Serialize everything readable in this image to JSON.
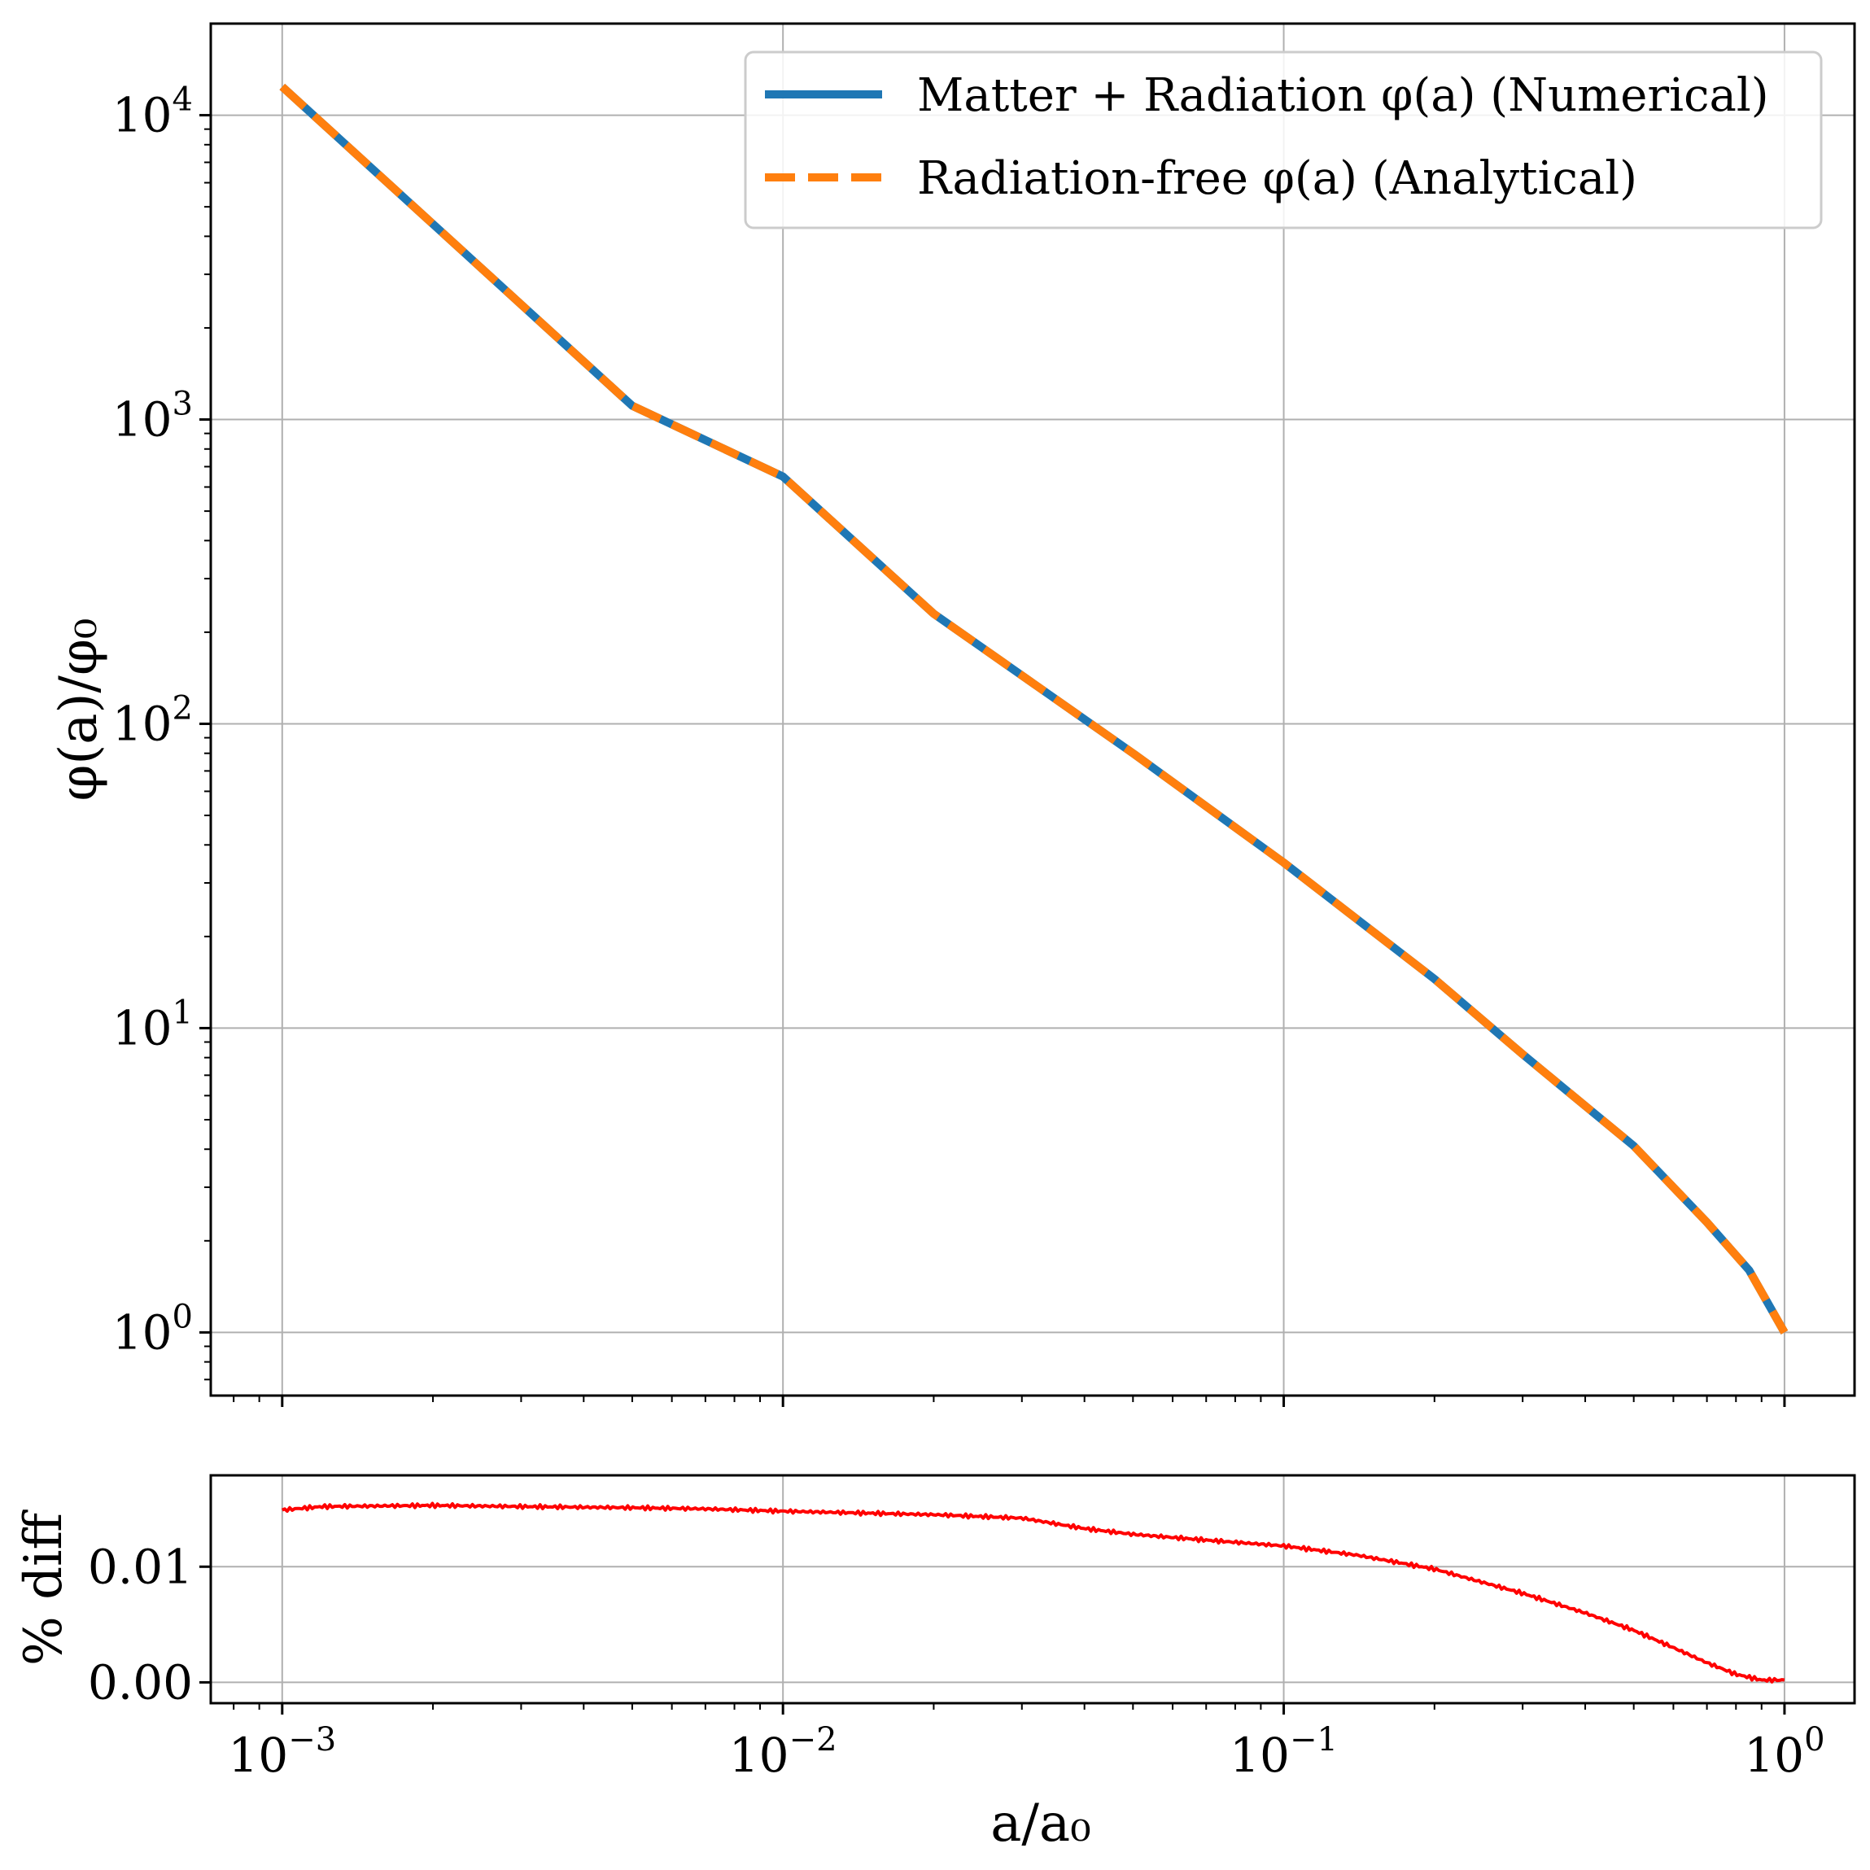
{
  "chart_data": [
    {
      "type": "line",
      "panel": "main",
      "xscale": "log",
      "yscale": "log",
      "xlim": [
        0.00072,
        1.38
      ],
      "ylim": [
        0.62,
        20000
      ],
      "xlabel": "",
      "ylabel": "φ(a)/φ₀",
      "grid": true,
      "legend_position": "top-right",
      "x_ticks": [
        {
          "value": 0.001,
          "base": "10",
          "exp": "−3"
        },
        {
          "value": 0.01,
          "base": "10",
          "exp": "−2"
        },
        {
          "value": 0.1,
          "base": "10",
          "exp": "−1"
        },
        {
          "value": 1,
          "base": "10",
          "exp": "0"
        }
      ],
      "y_ticks": [
        {
          "value": 1,
          "base": "10",
          "exp": "0"
        },
        {
          "value": 10,
          "base": "10",
          "exp": "1"
        },
        {
          "value": 100,
          "base": "10",
          "exp": "2"
        },
        {
          "value": 1000,
          "base": "10",
          "exp": "3"
        },
        {
          "value": 10000,
          "base": "10",
          "exp": "4"
        }
      ],
      "series": [
        {
          "name": "Matter + Radiation φ(a) (Numerical)",
          "color": "#1f77b4",
          "style": "solid",
          "x": [
            0.001,
            0.002,
            0.005,
            0.01,
            0.02,
            0.05,
            0.1,
            0.2,
            0.3,
            0.5,
            0.7,
            0.85,
            1.0
          ],
          "y": [
            12400,
            4390,
            1110,
            649,
            230,
            80,
            35,
            14.5,
            8.2,
            4.1,
            2.3,
            1.6,
            1.0
          ]
        },
        {
          "name": "Radiation-free φ(a) (Analytical)",
          "color": "#ff7f0e",
          "style": "dashed",
          "x": [
            0.001,
            0.002,
            0.005,
            0.01,
            0.02,
            0.05,
            0.1,
            0.2,
            0.3,
            0.5,
            0.7,
            0.85,
            1.0
          ],
          "y": [
            12400,
            4390,
            1110,
            649,
            230,
            80,
            35,
            14.5,
            8.2,
            4.1,
            2.3,
            1.6,
            1.0
          ]
        }
      ]
    },
    {
      "type": "line",
      "panel": "residual",
      "xscale": "log",
      "yscale": "linear",
      "xlim": [
        0.00072,
        1.38
      ],
      "ylim": [
        -0.0018,
        0.0179
      ],
      "xlabel": "a/a₀",
      "ylabel": "% diff",
      "grid": true,
      "x_ticks": [
        {
          "value": 0.001,
          "base": "10",
          "exp": "−3"
        },
        {
          "value": 0.01,
          "base": "10",
          "exp": "−2"
        },
        {
          "value": 0.1,
          "base": "10",
          "exp": "−1"
        },
        {
          "value": 1,
          "base": "10",
          "exp": "0"
        }
      ],
      "y_ticks": [
        {
          "value": 0.0,
          "label": "0.00"
        },
        {
          "value": 0.01,
          "label": "0.01"
        }
      ],
      "series": [
        {
          "name": "% diff",
          "color": "#ff0000",
          "style": "solid",
          "x": [
            0.001,
            0.0012,
            0.002,
            0.003,
            0.005,
            0.007,
            0.01,
            0.02,
            0.03,
            0.04,
            0.05,
            0.07,
            0.1,
            0.14,
            0.2,
            0.22,
            0.3,
            0.4,
            0.5,
            0.6,
            0.7,
            0.8,
            0.9,
            1.0
          ],
          "y": [
            0.0149,
            0.0152,
            0.0153,
            0.0152,
            0.0151,
            0.015,
            0.0148,
            0.0145,
            0.0142,
            0.0133,
            0.0128,
            0.0123,
            0.0118,
            0.011,
            0.0098,
            0.0093,
            0.0077,
            0.006,
            0.0045,
            0.003,
            0.0017,
            0.0007,
            0.0002,
            0.0002
          ]
        }
      ]
    }
  ],
  "legend": {
    "entry1": "Matter + Radiation φ(a) (Numerical)",
    "entry2": "Radiation-free φ(a) (Analytical)"
  }
}
